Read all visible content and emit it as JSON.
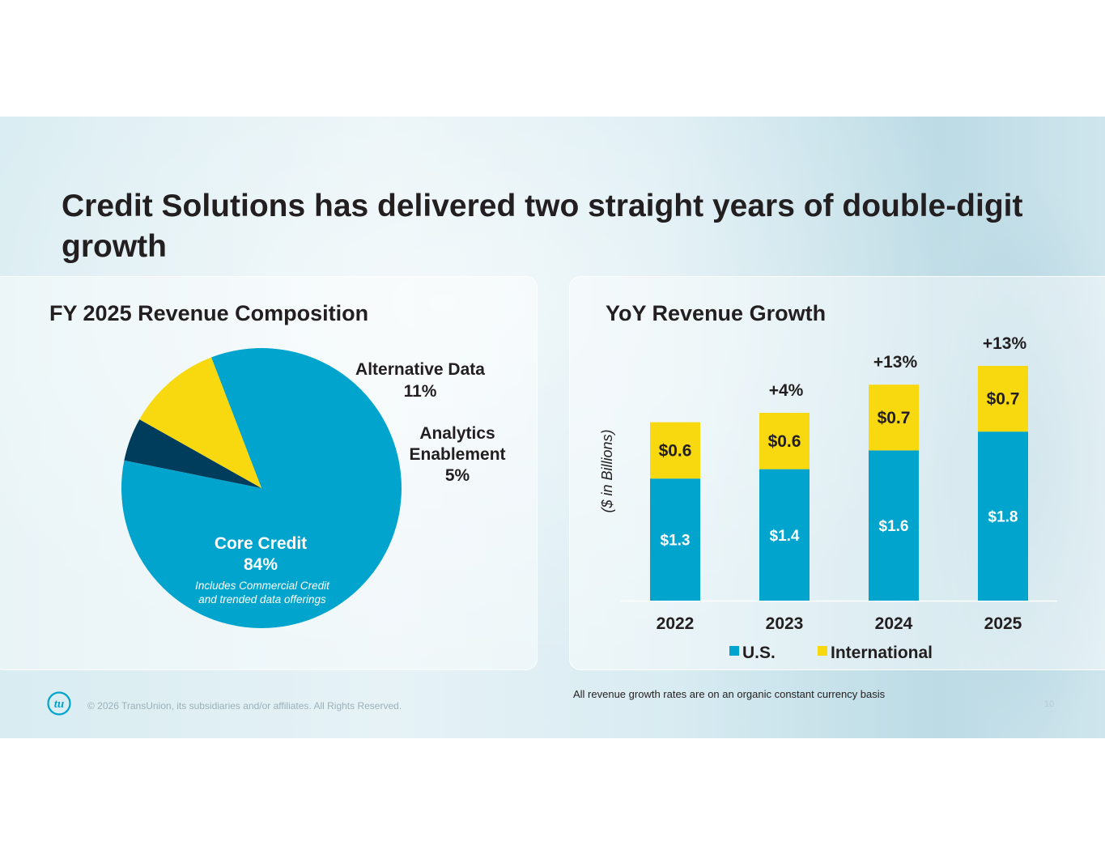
{
  "title": "Credit Solutions has delivered two straight years of double-digit growth",
  "footer_note": "All revenue growth rates are on an organic constant currency basis",
  "copyright": "© 2026 TransUnion, its subsidiaries and/or affiliates. All Rights Reserved.",
  "logo_text": "tu",
  "page_number": "10",
  "colors": {
    "us": "#00a4cc",
    "international": "#f8d80f",
    "analytics": "#003d5c",
    "text": "#231f20"
  },
  "chart_data": [
    {
      "type": "pie",
      "title": "FY 2025 Revenue Composition",
      "slices": [
        {
          "label": "Core Credit",
          "value": 84,
          "value_label": "84%",
          "note": [
            "Includes Commercial Credit",
            "and trended data offerings"
          ],
          "color": "#00a4cc"
        },
        {
          "label": "Alternative Data",
          "value": 11,
          "value_label": "11%",
          "color": "#f8d80f"
        },
        {
          "label": "Analytics Enablement",
          "label_lines": [
            "Analytics",
            "Enablement"
          ],
          "value": 5,
          "value_label": "5%",
          "color": "#003d5c"
        }
      ]
    },
    {
      "type": "bar",
      "stacked": true,
      "title": "YoY Revenue Growth",
      "ylabel": "($ in Billions)",
      "categories": [
        "2022",
        "2023",
        "2024",
        "2025"
      ],
      "ylim": [
        0,
        2.6
      ],
      "series": [
        {
          "name": "U.S.",
          "values": [
            1.3,
            1.4,
            1.6,
            1.8
          ],
          "labels": [
            "$1.3",
            "$1.4",
            "$1.6",
            "$1.8"
          ],
          "color": "#00a4cc"
        },
        {
          "name": "International",
          "values": [
            0.6,
            0.6,
            0.7,
            0.7
          ],
          "labels": [
            "$0.6",
            "$0.6",
            "$0.7",
            "$0.7"
          ],
          "color": "#f8d80f"
        }
      ],
      "growth_labels": [
        "",
        "+4%",
        "+13%",
        "+13%"
      ],
      "legend": [
        "U.S.",
        "International"
      ]
    }
  ]
}
